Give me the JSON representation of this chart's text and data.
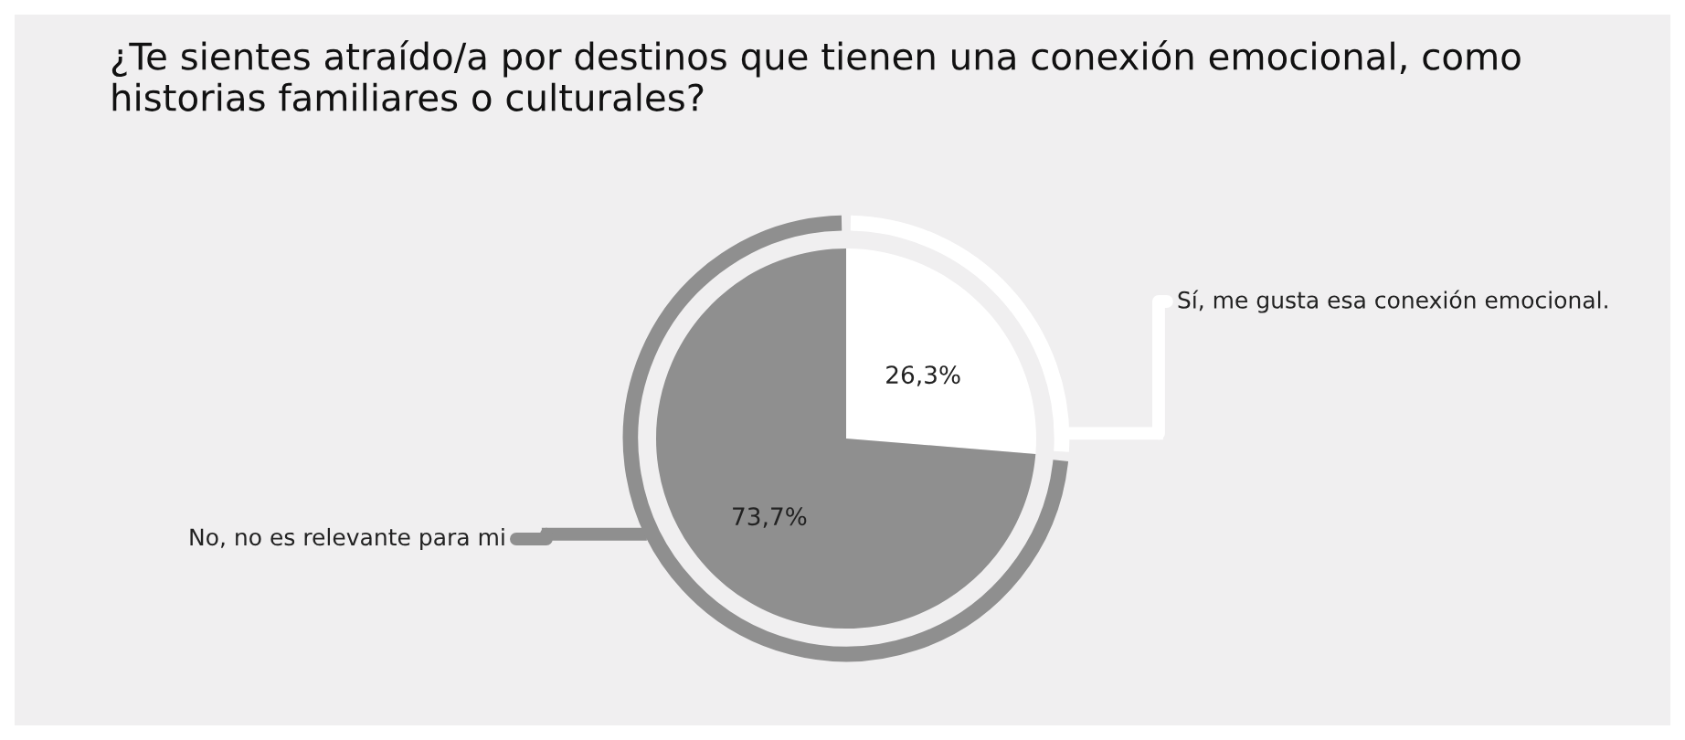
{
  "chart_data": {
    "type": "pie",
    "title": "¿Te sientes atraído/a por destinos que tienen una conexión emocional, como historias familiares o culturales?",
    "categories": [
      "Sí, me gusta esa conexión emocional.",
      "No, no es relevante para mi"
    ],
    "values": [
      26.3,
      73.7
    ],
    "colors": [
      "#ffffff",
      "#8f8f8f"
    ],
    "value_labels": [
      "26,3%",
      "73,7%"
    ]
  }
}
